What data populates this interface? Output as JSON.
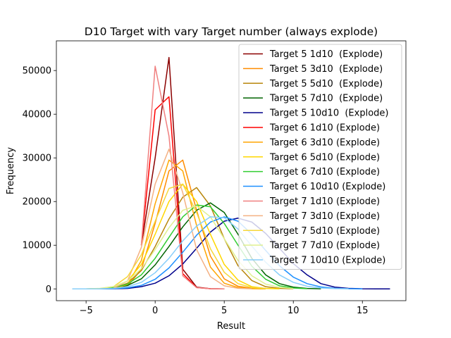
{
  "chart_data": {
    "type": "line",
    "title": "D10 Target with vary Target number (always explode)",
    "xlabel": "Result",
    "ylabel": "Frequency",
    "xlim": [
      -7.15,
      18.15
    ],
    "ylim": [
      -2700,
      56800
    ],
    "xticks": [
      -5,
      0,
      5,
      10,
      15
    ],
    "xtick_labels": [
      "−5",
      "0",
      "5",
      "10",
      "15"
    ],
    "yticks": [
      0,
      10000,
      20000,
      30000,
      40000,
      50000
    ],
    "ytick_labels": [
      "0",
      "10000",
      "20000",
      "30000",
      "40000",
      "50000"
    ],
    "grid": false,
    "legend_position": "upper right",
    "series": [
      {
        "name": "Target 5 1d10  (Explode)",
        "color": "#8b0000",
        "x": [
          -1,
          0,
          1,
          2,
          3,
          4,
          5
        ],
        "y": [
          10000,
          30000,
          53000,
          4500,
          400,
          50,
          10
        ]
      },
      {
        "name": "Target 5 3d10  (Explode)",
        "color": "#ff8c00",
        "x": [
          -3,
          -2,
          -1,
          0,
          1,
          2,
          3,
          4,
          5,
          6,
          7,
          8
        ],
        "y": [
          50,
          600,
          4500,
          15000,
          27000,
          29500,
          18000,
          7500,
          2300,
          600,
          130,
          20
        ]
      },
      {
        "name": "Target 5 5d10  (Explode)",
        "color": "#b8860b",
        "x": [
          -5,
          -4,
          -3,
          -2,
          -1,
          0,
          1,
          2,
          3,
          4,
          5,
          6,
          7,
          8,
          9,
          10
        ],
        "y": [
          0,
          20,
          200,
          1300,
          4200,
          9700,
          16000,
          21000,
          23200,
          19000,
          11500,
          5300,
          1900,
          500,
          120,
          20
        ]
      },
      {
        "name": "Target 5 7d10  (Explode)",
        "color": "#006400",
        "x": [
          -6,
          -5,
          -4,
          -3,
          -2,
          -1,
          0,
          1,
          2,
          3,
          4,
          5,
          6,
          7,
          8,
          9,
          10,
          11,
          12
        ],
        "y": [
          0,
          0,
          30,
          200,
          800,
          2300,
          5500,
          9700,
          14200,
          18000,
          19700,
          17500,
          12500,
          7000,
          3200,
          1200,
          400,
          100,
          20
        ]
      },
      {
        "name": "Target 5 10d10  (Explode)",
        "color": "#00008b",
        "x": [
          -6,
          -5,
          -4,
          -3,
          -2,
          -1,
          0,
          1,
          2,
          3,
          4,
          5,
          6,
          7,
          8,
          9,
          10,
          11,
          12,
          13,
          14,
          15,
          16,
          17
        ],
        "y": [
          0,
          0,
          0,
          20,
          100,
          500,
          1300,
          3000,
          5700,
          9300,
          13000,
          15500,
          16200,
          15300,
          12700,
          9300,
          5800,
          3200,
          1200,
          400,
          120,
          30,
          10,
          0
        ]
      },
      {
        "name": "Target 6 1d10 (Explode)",
        "color": "#ff0000",
        "x": [
          -1,
          0,
          1,
          2,
          3,
          4,
          5
        ],
        "y": [
          10000,
          41000,
          44000,
          3500,
          300,
          40,
          10
        ]
      },
      {
        "name": "Target 6 3d10 (Explode)",
        "color": "#ffa500",
        "x": [
          -3,
          -2,
          -1,
          0,
          1,
          2,
          3,
          4,
          5,
          6,
          7,
          8
        ],
        "y": [
          100,
          1000,
          6500,
          19500,
          29500,
          27000,
          14500,
          5000,
          1300,
          300,
          50,
          10
        ]
      },
      {
        "name": "Target 6 5d10 (Explode)",
        "color": "#ffd700",
        "x": [
          -5,
          -4,
          -3,
          -2,
          -1,
          0,
          1,
          2,
          3,
          4,
          5,
          6,
          7,
          8,
          9
        ],
        "y": [
          0,
          30,
          300,
          1800,
          5600,
          12500,
          20000,
          24000,
          20000,
          12500,
          5600,
          2000,
          500,
          100,
          20
        ]
      },
      {
        "name": "Target 6 7d10 (Explode)",
        "color": "#32cd32",
        "x": [
          -6,
          -5,
          -4,
          -3,
          -2,
          -1,
          0,
          1,
          2,
          3,
          4,
          5,
          6,
          7,
          8,
          9,
          10,
          11
        ],
        "y": [
          0,
          10,
          60,
          300,
          1100,
          3200,
          7000,
          11800,
          16500,
          19200,
          18800,
          15000,
          10000,
          5200,
          2200,
          700,
          200,
          40
        ]
      },
      {
        "name": "Target 6 10d10 (Explode)",
        "color": "#1e90ff",
        "x": [
          -6,
          -5,
          -4,
          -3,
          -2,
          -1,
          0,
          1,
          2,
          3,
          4,
          5,
          6,
          7,
          8,
          9,
          10,
          11,
          12,
          13,
          14,
          15
        ],
        "y": [
          0,
          0,
          10,
          50,
          250,
          800,
          2200,
          4800,
          8400,
          12300,
          15300,
          16500,
          15500,
          12500,
          8800,
          5300,
          2700,
          1200,
          450,
          150,
          40,
          10
        ]
      },
      {
        "name": "Target 7 1d10 (Explode)",
        "color": "#f08080",
        "x": [
          -1,
          0,
          1,
          2,
          3,
          4,
          5
        ],
        "y": [
          10000,
          51000,
          35000,
          3000,
          300,
          30,
          0
        ]
      },
      {
        "name": "Target 7 3d10 (Explode)",
        "color": "#f4b183",
        "x": [
          -3,
          -2,
          -1,
          0,
          1,
          2,
          3,
          4,
          5,
          6,
          7
        ],
        "y": [
          200,
          1800,
          9500,
          24000,
          32000,
          22000,
          9000,
          2800,
          700,
          150,
          20
        ]
      },
      {
        "name": "Target 7 5d10 (Explode)",
        "color": "#f5d73a",
        "x": [
          -5,
          -4,
          -3,
          -2,
          -1,
          0,
          1,
          2,
          3,
          4,
          5,
          6,
          7,
          8
        ],
        "y": [
          0,
          60,
          550,
          2800,
          7800,
          15500,
          23000,
          24000,
          17500,
          9200,
          3800,
          1200,
          300,
          60
        ]
      },
      {
        "name": "Target 7 7d10 (Explode)",
        "color": "#e0f090",
        "x": [
          -6,
          -5,
          -4,
          -3,
          -2,
          -1,
          0,
          1,
          2,
          3,
          4,
          5,
          6,
          7,
          8,
          9,
          10
        ],
        "y": [
          0,
          20,
          120,
          550,
          1800,
          4600,
          9000,
          14000,
          18000,
          19000,
          16500,
          11500,
          6500,
          3000,
          1100,
          350,
          80
        ]
      },
      {
        "name": "Target 7 10d10 (Explode)",
        "color": "#87cefa",
        "x": [
          -6,
          -5,
          -4,
          -3,
          -2,
          -1,
          0,
          1,
          2,
          3,
          4,
          5,
          6,
          7,
          8,
          9,
          10,
          11,
          12,
          13,
          14
        ],
        "y": [
          0,
          0,
          20,
          120,
          500,
          1500,
          3700,
          7000,
          11000,
          14400,
          16500,
          16300,
          13700,
          9800,
          6100,
          3200,
          1500,
          600,
          200,
          60,
          15
        ]
      }
    ]
  }
}
